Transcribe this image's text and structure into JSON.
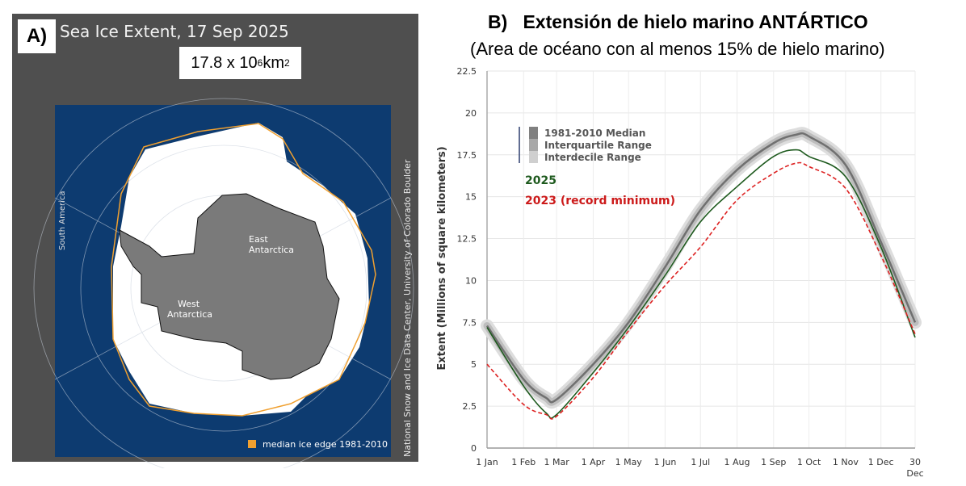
{
  "panel_a": {
    "label": "A)",
    "title": "Sea Ice Extent, 17 Sep 2025",
    "extent_value": "17.8 x 10",
    "extent_exp": "6",
    "extent_unit": " km",
    "extent_unit_exp": "2",
    "map_labels": {
      "south_america": "South America",
      "east": "East",
      "east2": "Antarctica",
      "west": "West",
      "west2": "Antarctica"
    },
    "legend": "median ice edge 1981-2010",
    "credit": "National Snow and Ice Data Center, University of Colorado Boulder",
    "colors": {
      "ocean": "#0d3b70",
      "ice": "#ffffff",
      "land": "#7a7a7a",
      "median_edge": "#f0a030",
      "background": "#4f4f4f"
    }
  },
  "chart_data": {
    "type": "line",
    "label": "B)",
    "title": "Extensión de hielo marino ANTÁRTICO",
    "subtitle": "(Area de océano con al menos 15% de hielo marino)",
    "ylabel": "Extent (Millions of square kilometers)",
    "xlabel": "",
    "ylim": [
      0,
      22.5
    ],
    "yticks": [
      "0",
      "2.5",
      "5",
      "7.5",
      "10",
      "12.5",
      "15",
      "17.5",
      "20",
      "22.5"
    ],
    "xticks": [
      "1 Jan",
      "1 Feb",
      "1 Mar",
      "1 Apr",
      "1 May",
      "1 Jun",
      "1 Jul",
      "1 Aug",
      "1 Sep",
      "1 Oct",
      "1 Nov",
      "1 Dec",
      "30"
    ],
    "xtick_sub": "Dec",
    "grid": true,
    "legend": {
      "position": "top-left",
      "items": [
        "1981-2010 Median",
        "Interquartile Range",
        "Interdecile Range"
      ]
    },
    "x": [
      "1 Jan",
      "1 Feb",
      "20 Feb",
      "1 Mar",
      "1 Apr",
      "1 May",
      "1 Jun",
      "1 Jul",
      "1 Aug",
      "1 Sep",
      "20 Sep",
      "1 Oct",
      "1 Nov",
      "1 Dec",
      "30 Dec"
    ],
    "series": [
      {
        "name": "1981-2010 Median",
        "color": "#707070",
        "values": [
          7.3,
          4.1,
          3.0,
          2.9,
          5.0,
          7.5,
          10.8,
          14.2,
          16.6,
          18.2,
          18.7,
          18.6,
          16.9,
          12.3,
          7.5
        ]
      },
      {
        "name": "2025",
        "color": "#1e5a1e",
        "values": [
          7.2,
          3.7,
          2.1,
          2.0,
          4.5,
          7.2,
          10.3,
          13.5,
          15.6,
          17.4,
          17.8,
          17.4,
          16.2,
          12.0,
          6.6
        ]
      },
      {
        "name": "2023 (record minimum)",
        "color": "#dd2222",
        "dashed": true,
        "values": [
          5.0,
          2.6,
          2.0,
          1.9,
          4.2,
          7.0,
          9.7,
          12.0,
          14.8,
          16.4,
          17.0,
          16.8,
          15.5,
          11.5,
          6.8
        ]
      }
    ]
  }
}
